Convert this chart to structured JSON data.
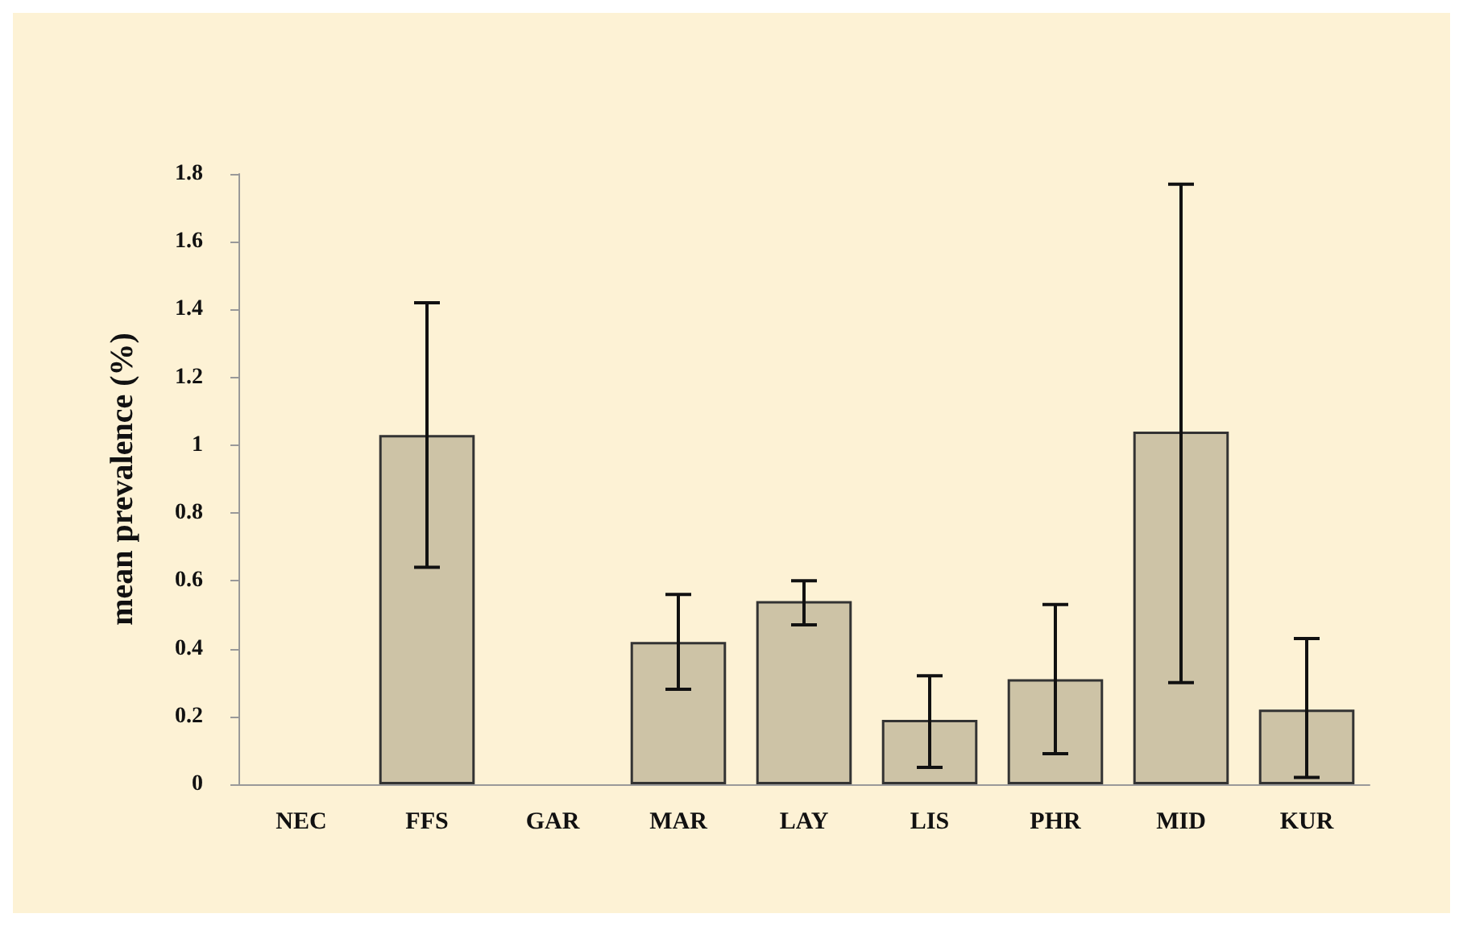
{
  "chart_data": {
    "type": "bar",
    "ylabel": "mean prevalence (%)",
    "categories": [
      "NEC",
      "FFS",
      "GAR",
      "MAR",
      "LAY",
      "LIS",
      "PHR",
      "MID",
      "KUR"
    ],
    "values": [
      0,
      1.03,
      0,
      0.42,
      0.54,
      0.19,
      0.31,
      1.04,
      0.22
    ],
    "errors": [
      null,
      [
        0.64,
        1.42
      ],
      null,
      [
        0.28,
        0.56
      ],
      [
        0.47,
        0.6
      ],
      [
        0.05,
        0.32
      ],
      [
        0.09,
        0.53
      ],
      [
        0.3,
        1.77
      ],
      [
        0.02,
        0.43
      ]
    ],
    "color": "#cdc3a6",
    "ylim": [
      0,
      1.8
    ],
    "yticks": [
      0,
      0.2,
      0.4,
      0.6,
      0.8,
      1,
      1.2,
      1.4,
      1.6,
      1.8
    ],
    "grid": false
  }
}
